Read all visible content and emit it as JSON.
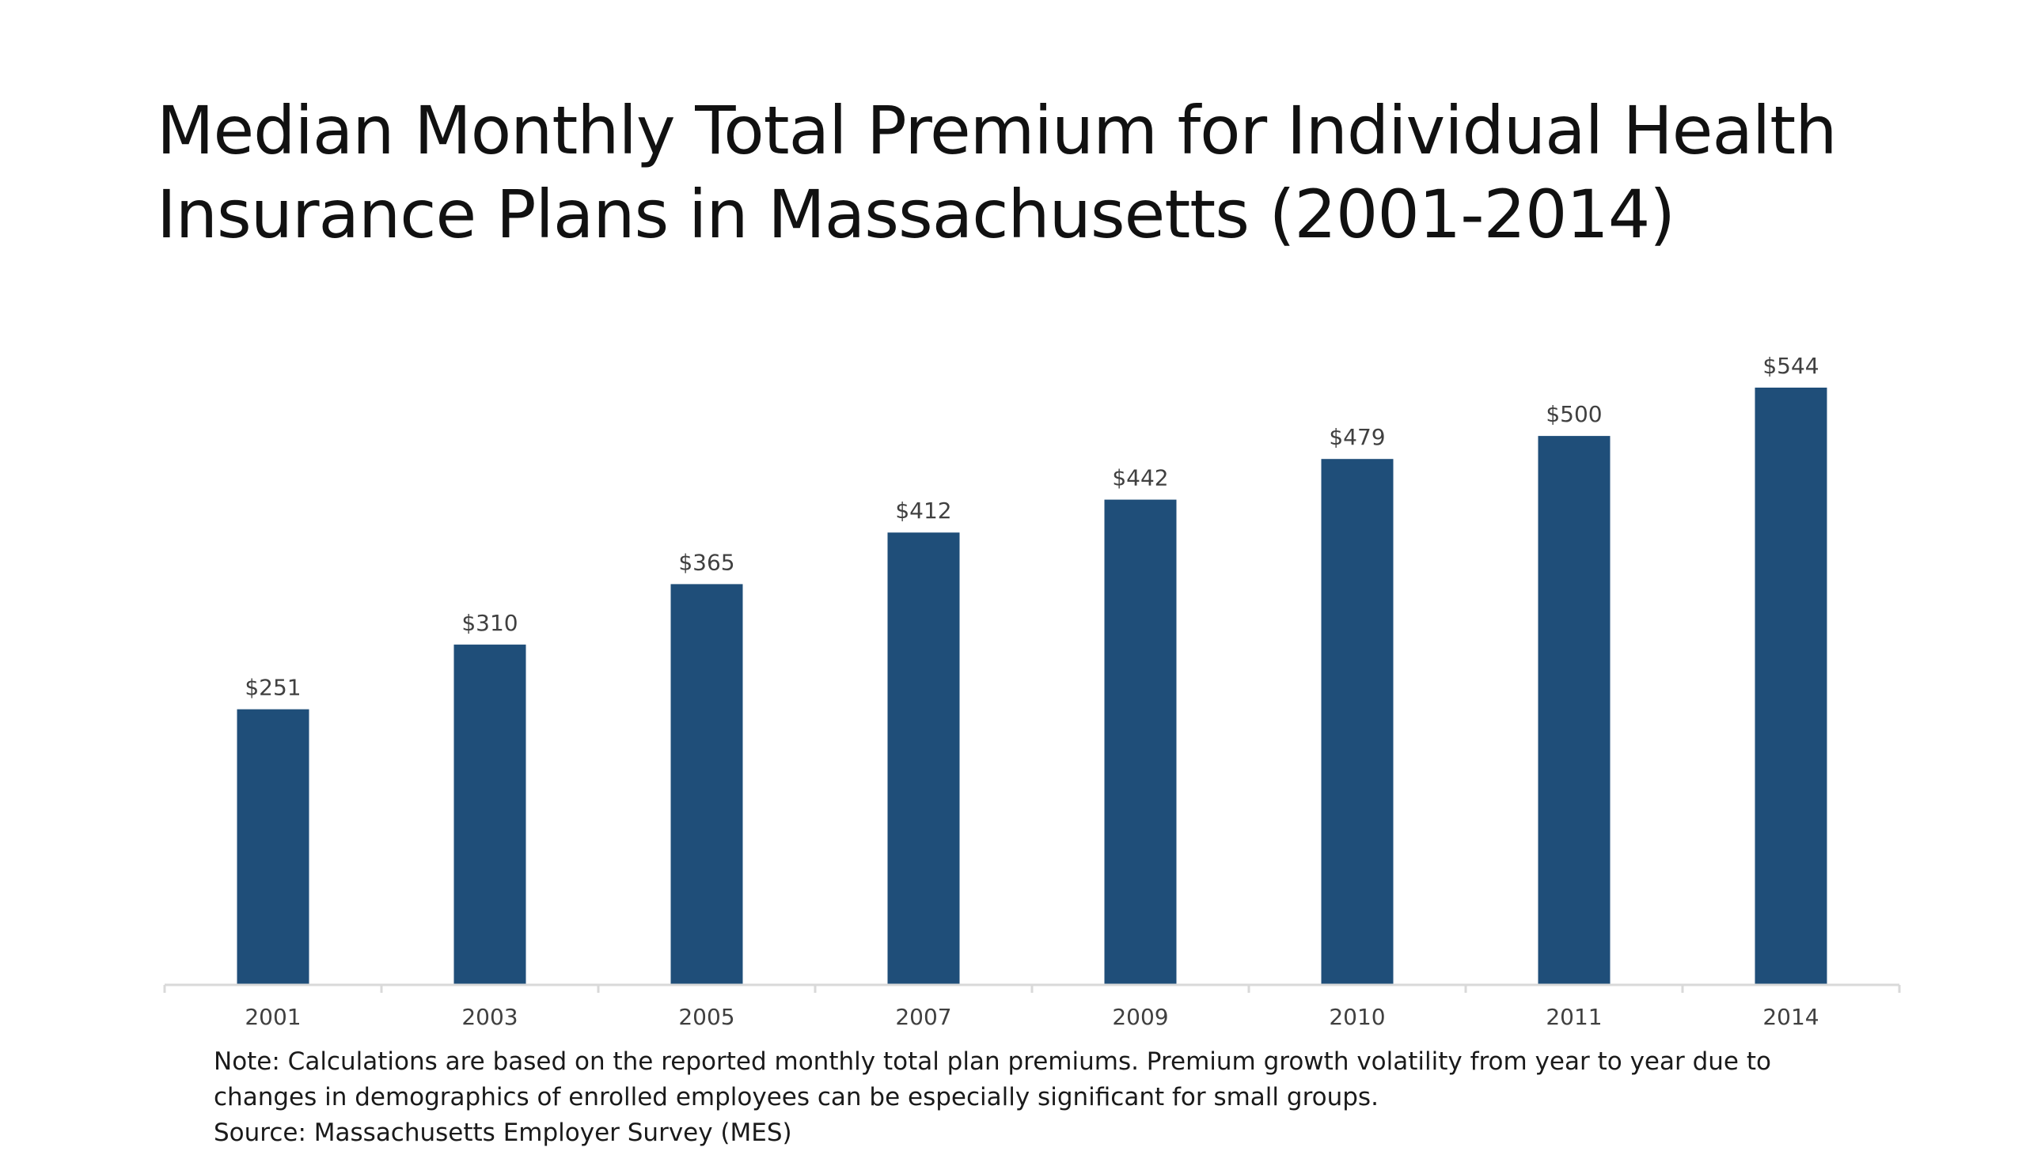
{
  "slide": {
    "title_line1": "Median Monthly Total Premium for Individual Health",
    "title_line2": "Insurance Plans in Massachusetts (2001-2014)",
    "note_line1": "Note: Calculations are based on the reported monthly total plan premiums.  Premium growth volatility from year to year due to",
    "note_line2": "changes in demographics of enrolled employees can be especially significant for small groups.",
    "source": "Source: Massachusetts Employer Survey (MES)"
  },
  "colors": {
    "bar": "#1f4e79",
    "axis": "#d9d9d9",
    "label": "#404040"
  },
  "chart_data": {
    "type": "bar",
    "title": "Median Monthly Total Premium for Individual Health Insurance Plans in Massachusetts (2001-2014)",
    "xlabel": "",
    "ylabel": "",
    "categories": [
      "2001",
      "2003",
      "2005",
      "2007",
      "2009",
      "2010",
      "2011",
      "2014"
    ],
    "values": [
      251,
      310,
      365,
      412,
      442,
      479,
      500,
      544
    ],
    "data_labels": [
      "$251",
      "$310",
      "$365",
      "$412",
      "$442",
      "$479",
      "$500",
      "$544"
    ],
    "ylim": [
      0,
      544
    ],
    "grid": false,
    "legend": "none"
  }
}
